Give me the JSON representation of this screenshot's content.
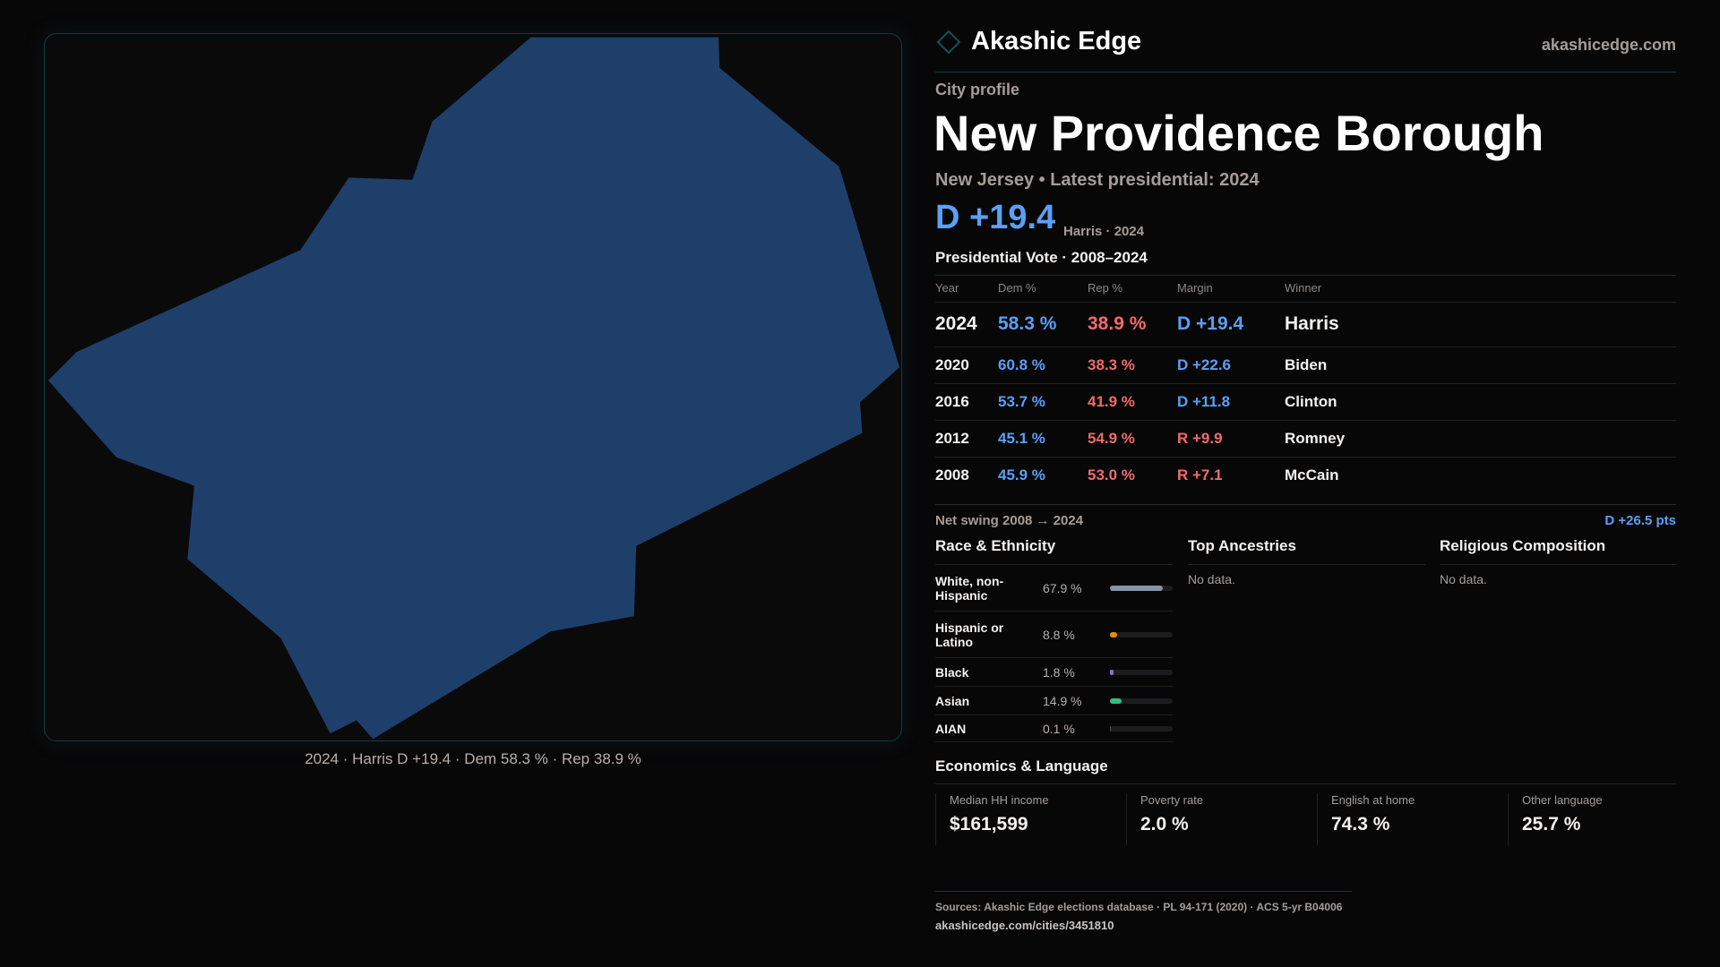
{
  "brand": {
    "name": "Akashic Edge",
    "site": "akashicedge.com"
  },
  "profile": {
    "kicker": "City profile",
    "title": "New Providence Borough",
    "subtitle": "New Jersey • Latest presidential: 2024",
    "headline_margin": "D +19.4",
    "headline_note": "Harris · 2024"
  },
  "map": {
    "caption": "2024 · Harris D +19.4 · Dem 58.3 % · Rep 38.9 %",
    "fill": "#1f3f6b"
  },
  "presidential": {
    "title": "Presidential Vote · 2008–2024",
    "headers": [
      "Year",
      "Dem %",
      "Rep %",
      "Margin",
      "Winner"
    ],
    "rows": [
      {
        "year": "2024",
        "dem": "58.3 %",
        "rep": "38.9 %",
        "margin": "D +19.4",
        "winner": "Harris",
        "party": "D"
      },
      {
        "year": "2020",
        "dem": "60.8 %",
        "rep": "38.3 %",
        "margin": "D +22.6",
        "winner": "Biden",
        "party": "D"
      },
      {
        "year": "2016",
        "dem": "53.7 %",
        "rep": "41.9 %",
        "margin": "D +11.8",
        "winner": "Clinton",
        "party": "D"
      },
      {
        "year": "2012",
        "dem": "45.1 %",
        "rep": "54.9 %",
        "margin": "R +9.9",
        "winner": "Romney",
        "party": "R"
      },
      {
        "year": "2008",
        "dem": "45.9 %",
        "rep": "53.0 %",
        "margin": "R +7.1",
        "winner": "McCain",
        "party": "R"
      }
    ],
    "swing_label": "Net swing 2008 → 2024",
    "swing_value": "D +26.5 pts"
  },
  "race": {
    "title": "Race & Ethnicity",
    "rows": [
      {
        "label": "White, non-Hispanic",
        "pct": "67.9 %",
        "value": 67.9,
        "color": "#8593a8"
      },
      {
        "label": "Hispanic or Latino",
        "pct": "8.8 %",
        "value": 8.8,
        "color": "#e08f12"
      },
      {
        "label": "Black",
        "pct": "1.8 %",
        "value": 1.8,
        "color": "#8c6ee6"
      },
      {
        "label": "Asian",
        "pct": "14.9 %",
        "value": 14.9,
        "color": "#2fbf86"
      },
      {
        "label": "AIAN",
        "pct": "0.1 %",
        "value": 0.1,
        "color": "#555"
      }
    ]
  },
  "ancestries": {
    "title": "Top Ancestries",
    "empty": "No data."
  },
  "religion": {
    "title": "Religious Composition",
    "empty": "No data."
  },
  "economics": {
    "title": "Economics & Language",
    "metrics": [
      {
        "label": "Median HH income",
        "value": "$161,599"
      },
      {
        "label": "Poverty rate",
        "value": "2.0 %"
      },
      {
        "label": "English at home",
        "value": "74.3 %"
      },
      {
        "label": "Other language",
        "value": "25.7 %"
      }
    ]
  },
  "footer": {
    "sources": "Sources: Akashic Edge elections database · PL 94-171 (2020) · ACS 5-yr B04006",
    "url": "akashicedge.com/cities/3451810"
  }
}
